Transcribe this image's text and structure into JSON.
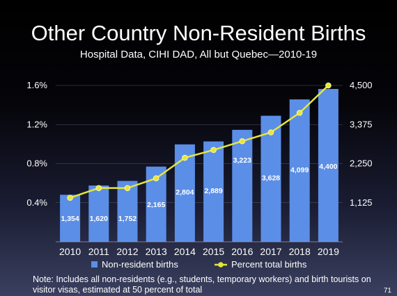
{
  "slide": {
    "title": "Other Country Non-Resident Births",
    "subtitle": "Hospital Data, CIHI DAD, All but Quebec—2010-19",
    "note": "Note:  Includes all non-residents (e.g., students, temporary workers) and birth tourists on visitor visas, estimated at 50 percent of total",
    "page_number": "71"
  },
  "chart_data": {
    "type": "bar",
    "title": "Other Country Non-Resident Births",
    "subtitle": "Hospital Data, CIHI DAD, All but Quebec—2010-19",
    "categories": [
      "2010",
      "2011",
      "2012",
      "2013",
      "2014",
      "2015",
      "2016",
      "2017",
      "2018",
      "2019"
    ],
    "series": [
      {
        "name": "Non-resident births",
        "type": "bar",
        "axis": "right",
        "color": "#5b8ee6",
        "values": [
          1354,
          1620,
          1752,
          2165,
          2804,
          2889,
          3223,
          3628,
          4099,
          4400
        ],
        "labels": [
          "1,354",
          "1,620",
          "1,752",
          "2,165",
          "2,804",
          "2,889",
          "3,223",
          "3,628",
          "4,099",
          "4,400"
        ]
      },
      {
        "name": "Percent total births",
        "type": "line",
        "axis": "left",
        "color": "#e6e63a",
        "values": [
          0.45,
          0.55,
          0.55,
          0.65,
          0.86,
          0.94,
          1.03,
          1.12,
          1.32,
          1.6
        ]
      }
    ],
    "y_left": {
      "ylim": [
        0,
        1.6
      ],
      "ticks": [
        0.4,
        0.8,
        1.2,
        1.6
      ],
      "tick_labels": [
        "0.4%",
        "0.8%",
        "1.2%",
        "1.6%"
      ]
    },
    "y_right": {
      "ylim": [
        0,
        4500
      ],
      "ticks": [
        1125,
        2250,
        3375,
        4500
      ],
      "tick_labels": [
        "1,125",
        "2,250",
        "3,375",
        "4,500"
      ]
    },
    "legend": {
      "position": "bottom",
      "entries": [
        "Non-resident births",
        "Percent total births"
      ]
    },
    "grid": true
  }
}
